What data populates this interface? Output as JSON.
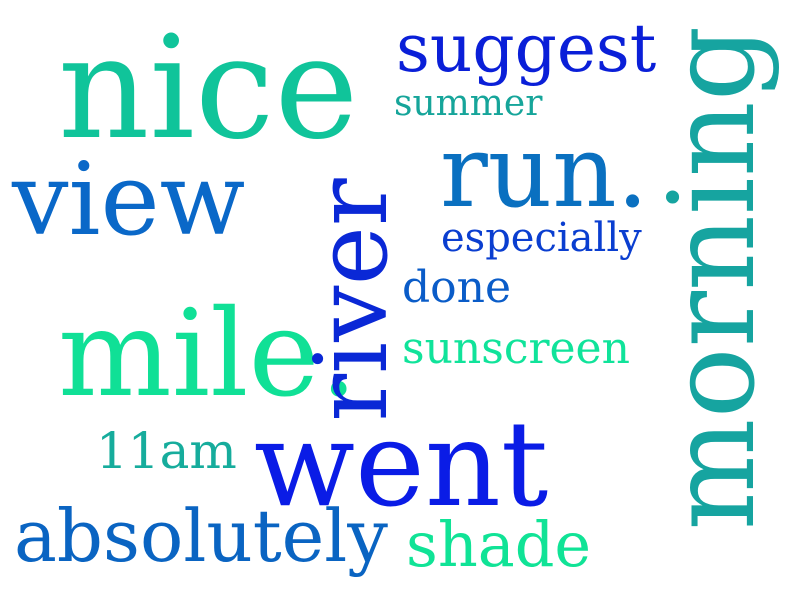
{
  "words": [
    {
      "key": "nice",
      "text": "nice",
      "color": "#10c49a"
    },
    {
      "key": "suggest",
      "text": "suggest",
      "color": "#0a1fd8"
    },
    {
      "key": "summer",
      "text": "summer",
      "color": "#16a59a"
    },
    {
      "key": "run",
      "text": "run.",
      "color": "#0a70c0"
    },
    {
      "key": "view",
      "text": "view",
      "color": "#0a68c8"
    },
    {
      "key": "especially",
      "text": "especially",
      "color": "#0a3ed0"
    },
    {
      "key": "done",
      "text": "done",
      "color": "#0a5cc8"
    },
    {
      "key": "mile",
      "text": "mile.",
      "color": "#10e096"
    },
    {
      "key": "sunscreen",
      "text": "sunscreen",
      "color": "#10e39a"
    },
    {
      "key": "river",
      "text": "river",
      "color": "#0a28d6"
    },
    {
      "key": "11am",
      "text": "11am",
      "color": "#16ac9c"
    },
    {
      "key": "went",
      "text": "went",
      "color": "#0a1ce6"
    },
    {
      "key": "absolutely",
      "text": "absolutely",
      "color": "#0a64c2"
    },
    {
      "key": "shade",
      "text": "shade",
      "color": "#10e396"
    },
    {
      "key": "morning",
      "text": "morning",
      "color": "#16a4a0"
    }
  ]
}
